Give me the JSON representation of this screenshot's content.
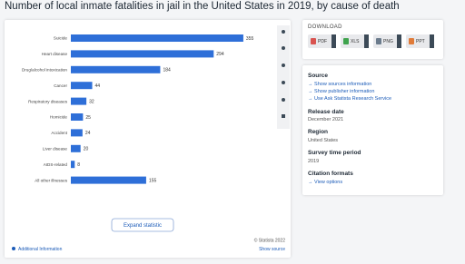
{
  "chart_data": {
    "type": "hbar",
    "title": "Number of local inmate fatalities in jail in the United States in 2019, by cause of death",
    "categories": [
      "Suicide",
      "Heart disease",
      "Drug/alcohol intoxication",
      "Cancer",
      "Respiratory diseases",
      "Homicide",
      "Accident",
      "Liver disease",
      "AIDS-related",
      "All other illnesses"
    ],
    "values": [
      355,
      294,
      184,
      44,
      32,
      25,
      24,
      20,
      8,
      155
    ],
    "color": "#2e6fd8",
    "xlim": [
      0,
      400
    ]
  },
  "footer": {
    "expand": "Expand statistic",
    "copyright": "© Statista 2022",
    "additional": "Additional Information",
    "source": "Show source"
  },
  "download": {
    "heading": "DOWNLOAD",
    "formats": [
      "PDF",
      "XLS",
      "PNG",
      "PPT"
    ]
  },
  "details": {
    "source_heading": "Source",
    "source_links": [
      "Show sources information",
      "Show publisher information",
      "Use Ask Statista Research Service"
    ],
    "release_heading": "Release date",
    "release": "December 2021",
    "region_heading": "Region",
    "region": "United States",
    "period_heading": "Survey time period",
    "period": "2019",
    "citation_heading": "Citation formats",
    "citation_link": "View options"
  }
}
